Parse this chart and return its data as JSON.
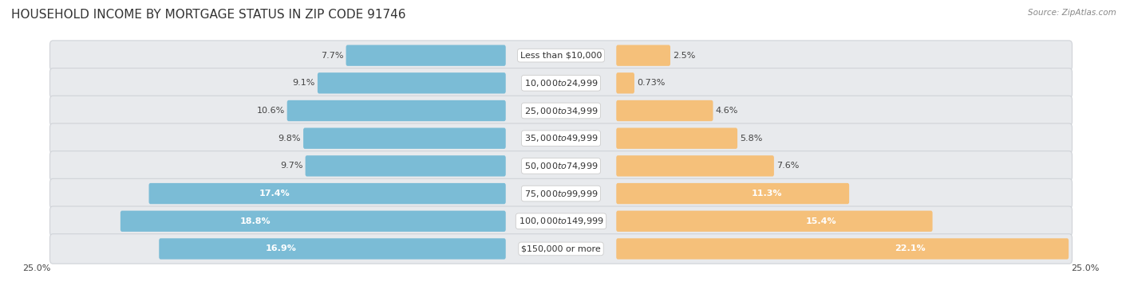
{
  "title": "HOUSEHOLD INCOME BY MORTGAGE STATUS IN ZIP CODE 91746",
  "source": "Source: ZipAtlas.com",
  "categories": [
    "Less than $10,000",
    "$10,000 to $24,999",
    "$25,000 to $34,999",
    "$35,000 to $49,999",
    "$50,000 to $74,999",
    "$75,000 to $99,999",
    "$100,000 to $149,999",
    "$150,000 or more"
  ],
  "without_mortgage": [
    7.7,
    9.1,
    10.6,
    9.8,
    9.7,
    17.4,
    18.8,
    16.9
  ],
  "with_mortgage": [
    2.5,
    0.73,
    4.6,
    5.8,
    7.6,
    11.3,
    15.4,
    22.1
  ],
  "without_mortgage_color": "#7BBCD6",
  "with_mortgage_color": "#F5C07A",
  "max_val": 25.0,
  "fig_bg": "#ffffff",
  "row_bg": "#e8eaed",
  "row_border": "#d0d3d8",
  "title_fontsize": 11,
  "label_fontsize": 8,
  "category_fontsize": 8,
  "legend_fontsize": 9,
  "axis_label_fontsize": 8,
  "inside_label_threshold_wom": 13.0,
  "inside_label_threshold_wm": 11.0
}
